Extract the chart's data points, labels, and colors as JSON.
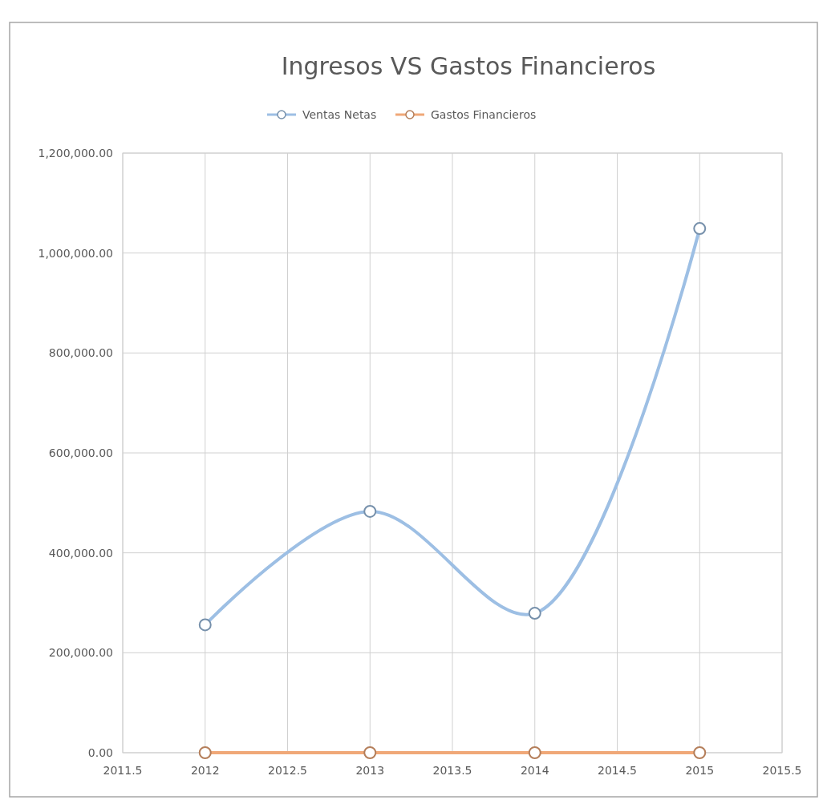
{
  "chart_data": {
    "type": "line",
    "title": "Ingresos VS Gastos Financieros",
    "x": [
      2012,
      2013,
      2014,
      2015
    ],
    "series": [
      {
        "name": "Ventas Netas",
        "color": "#9dbfe4",
        "values": [
          256000,
          483000,
          279000,
          1049000
        ]
      },
      {
        "name": "Gastos Financieros",
        "color": "#f0a878",
        "values": [
          0,
          0,
          0,
          0
        ]
      }
    ],
    "xlim": [
      2011.5,
      2015.5
    ],
    "xticks": [
      2011.5,
      2012,
      2012.5,
      2013,
      2013.5,
      2014,
      2014.5,
      2015,
      2015.5
    ],
    "ylim": [
      0,
      1200000
    ],
    "yticks": [
      {
        "value": 0,
        "label": "0.00"
      },
      {
        "value": 200000,
        "label": "200,000.00"
      },
      {
        "value": 400000,
        "label": "400,000.00"
      },
      {
        "value": 600000,
        "label": "600,000.00"
      },
      {
        "value": 800000,
        "label": "800,000.00"
      },
      {
        "value": 1000000,
        "label": "1,000,000.00"
      },
      {
        "value": 1200000,
        "label": "1,200,000.00"
      }
    ],
    "grid": true,
    "legend": "top",
    "marker": "circle",
    "line_style": "solid"
  }
}
